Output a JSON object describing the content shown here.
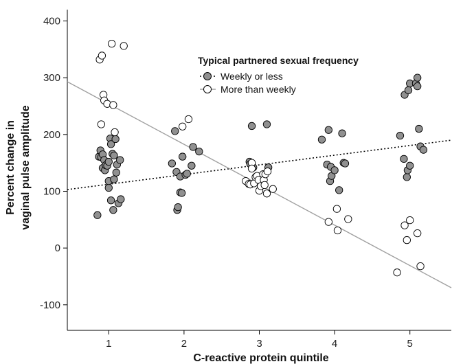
{
  "chart_data": {
    "type": "scatter",
    "xlabel": "C-reactive protein quintile",
    "ylabel_lines": [
      "Percent change in",
      "vaginal pulse amplitude"
    ],
    "xlim": [
      0.45,
      5.55
    ],
    "ylim": [
      -145,
      420
    ],
    "x_ticks": [
      1,
      2,
      3,
      4,
      5
    ],
    "y_ticks": [
      -100,
      0,
      100,
      200,
      300,
      400
    ],
    "grid": false,
    "legend": {
      "title": "Typical partnered sexual frequency",
      "placement": "top-center"
    },
    "series": [
      {
        "name": "Weekly or less",
        "marker_fill": "#909090",
        "line_style": "dotted",
        "line_color": "#000000",
        "fit_line": [
          [
            0.45,
            103
          ],
          [
            5.55,
            190
          ]
        ],
        "points": [
          [
            0.85,
            58
          ],
          [
            0.87,
            161
          ],
          [
            0.89,
            172
          ],
          [
            0.9,
            160
          ],
          [
            0.92,
            141
          ],
          [
            0.92,
            165
          ],
          [
            0.94,
            155
          ],
          [
            0.95,
            137
          ],
          [
            0.96,
            146
          ],
          [
            0.98,
            145
          ],
          [
            1.0,
            152
          ],
          [
            1.0,
            106
          ],
          [
            1.0,
            118
          ],
          [
            1.02,
            193
          ],
          [
            1.03,
            183
          ],
          [
            1.03,
            84
          ],
          [
            1.05,
            166
          ],
          [
            1.06,
            67
          ],
          [
            1.07,
            163
          ],
          [
            1.07,
            121
          ],
          [
            1.09,
            192
          ],
          [
            1.1,
            133
          ],
          [
            1.11,
            147
          ],
          [
            1.13,
            79
          ],
          [
            1.15,
            155
          ],
          [
            1.16,
            86
          ],
          [
            1.84,
            149
          ],
          [
            1.88,
            206
          ],
          [
            1.9,
            134
          ],
          [
            1.91,
            67
          ],
          [
            1.92,
            72
          ],
          [
            1.95,
            98
          ],
          [
            1.95,
            126
          ],
          [
            1.97,
            97
          ],
          [
            1.98,
            161
          ],
          [
            2.02,
            129
          ],
          [
            2.04,
            131
          ],
          [
            2.1,
            145
          ],
          [
            2.12,
            178
          ],
          [
            2.2,
            170
          ],
          [
            2.87,
            152
          ],
          [
            2.88,
            148
          ],
          [
            2.9,
            215
          ],
          [
            2.92,
            142
          ],
          [
            3.1,
            218
          ],
          [
            3.12,
            142
          ],
          [
            3.83,
            191
          ],
          [
            3.9,
            147
          ],
          [
            3.92,
            208
          ],
          [
            3.94,
            118
          ],
          [
            3.95,
            143
          ],
          [
            3.96,
            127
          ],
          [
            4.0,
            137
          ],
          [
            4.06,
            102
          ],
          [
            4.1,
            202
          ],
          [
            4.12,
            150
          ],
          [
            4.14,
            149
          ],
          [
            4.87,
            198
          ],
          [
            4.92,
            157
          ],
          [
            4.93,
            270
          ],
          [
            4.96,
            125
          ],
          [
            4.97,
            137
          ],
          [
            4.98,
            278
          ],
          [
            5.0,
            145
          ],
          [
            5.0,
            290
          ],
          [
            5.08,
            290
          ],
          [
            5.1,
            300
          ],
          [
            5.1,
            285
          ],
          [
            5.12,
            210
          ],
          [
            5.14,
            179
          ],
          [
            5.18,
            173
          ]
        ]
      },
      {
        "name": "More than weekly",
        "marker_fill": "#ffffff",
        "line_style": "solid",
        "line_color": "#a0a0a0",
        "fit_line": [
          [
            0.45,
            293
          ],
          [
            5.55,
            -70
          ]
        ],
        "points": [
          [
            0.88,
            332
          ],
          [
            0.9,
            218
          ],
          [
            0.91,
            339
          ],
          [
            0.93,
            270
          ],
          [
            0.94,
            260
          ],
          [
            0.98,
            254
          ],
          [
            1.04,
            360
          ],
          [
            1.06,
            252
          ],
          [
            1.08,
            204
          ],
          [
            1.2,
            356
          ],
          [
            1.98,
            214
          ],
          [
            2.06,
            227
          ],
          [
            2.82,
            118
          ],
          [
            2.86,
            113
          ],
          [
            2.88,
            112
          ],
          [
            2.9,
            150
          ],
          [
            2.9,
            140
          ],
          [
            2.93,
            114
          ],
          [
            2.95,
            125
          ],
          [
            2.97,
            127
          ],
          [
            2.99,
            120
          ],
          [
            3.0,
            101
          ],
          [
            3.02,
            109
          ],
          [
            3.05,
            130
          ],
          [
            3.06,
            120
          ],
          [
            3.07,
            111
          ],
          [
            3.08,
            130
          ],
          [
            3.1,
            96
          ],
          [
            3.11,
            135
          ],
          [
            3.18,
            104
          ],
          [
            3.92,
            46
          ],
          [
            4.03,
            69
          ],
          [
            4.04,
            31
          ],
          [
            4.18,
            51
          ],
          [
            4.83,
            -43
          ],
          [
            4.93,
            40
          ],
          [
            4.96,
            14
          ],
          [
            5.0,
            49
          ],
          [
            5.1,
            26
          ],
          [
            5.14,
            -32
          ]
        ]
      }
    ]
  }
}
